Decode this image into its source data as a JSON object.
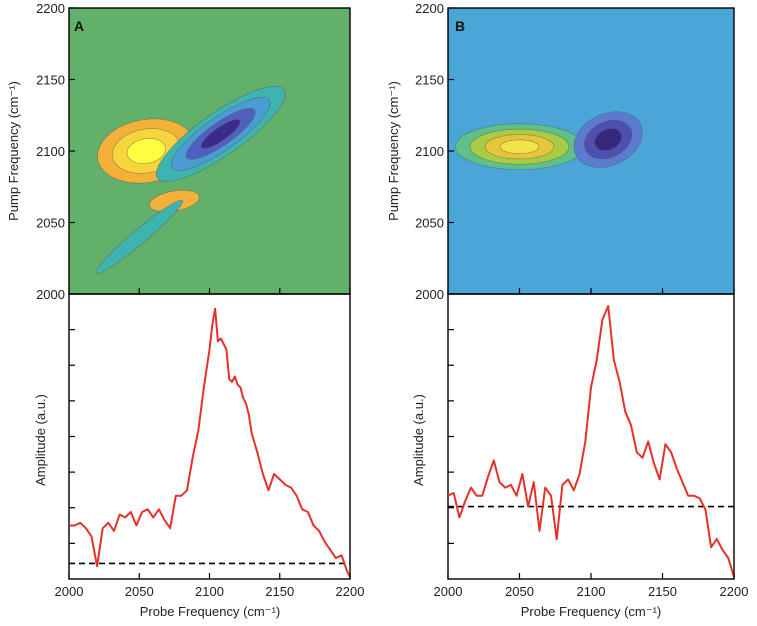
{
  "chart_data": [
    {
      "panel": "A",
      "type": "contour",
      "position": "top-left",
      "xlim": [
        2000,
        2200
      ],
      "ylim": [
        2000,
        2200
      ],
      "xticks": [
        2000,
        2050,
        2100,
        2150,
        2200
      ],
      "yticks": [
        2000,
        2050,
        2100,
        2150,
        2200
      ],
      "xlabel": "",
      "ylabel": "Pump Frequency (cm⁻¹)",
      "background_color": "#63b06a",
      "features": [
        {
          "kind": "positive-peak",
          "x": 2055,
          "y": 2100,
          "rx": 35,
          "ry": 22,
          "rot": -10,
          "colors": [
            "#f2b23a",
            "#f8d43e",
            "#ffff40"
          ]
        },
        {
          "kind": "negative-peak",
          "x": 2108,
          "y": 2112,
          "rx": 55,
          "ry": 15,
          "rot": -35,
          "colors": [
            "#3fb3b0",
            "#4b9bd4",
            "#5260bd",
            "#3b2a8a"
          ]
        },
        {
          "kind": "positive-lobe",
          "x": 2075,
          "y": 2065,
          "rx": 18,
          "ry": 7,
          "rot": -10,
          "colors": [
            "#f2b23a"
          ]
        },
        {
          "kind": "negative-ridge",
          "x": 2050,
          "y": 2040,
          "rx": 40,
          "ry": 5,
          "rot": -40,
          "colors": [
            "#3fb3b0"
          ]
        }
      ]
    },
    {
      "panel": "B",
      "type": "contour",
      "position": "top-right",
      "xlim": [
        2000,
        2200
      ],
      "ylim": [
        2000,
        2200
      ],
      "xticks": [
        2000,
        2050,
        2100,
        2150,
        2200
      ],
      "yticks": [
        2000,
        2050,
        2100,
        2150,
        2200
      ],
      "xlabel": "",
      "ylabel": "Pump Frequency (cm⁻¹)",
      "background_color": "#4aa6d6",
      "features": [
        {
          "kind": "positive-peak",
          "x": 2050,
          "y": 2103,
          "rx": 45,
          "ry": 16,
          "rot": 0,
          "colors": [
            "#5fc08a",
            "#a9cc45",
            "#e6c53a",
            "#f3e24a"
          ]
        },
        {
          "kind": "negative-peak",
          "x": 2112,
          "y": 2108,
          "rx": 25,
          "ry": 18,
          "rot": -25,
          "colors": [
            "#5a7bd0",
            "#4e4fb0",
            "#36297d"
          ]
        }
      ]
    },
    {
      "panel": "A",
      "type": "line",
      "position": "bottom-left",
      "xlim": [
        2000,
        2200
      ],
      "xticks": [
        2000,
        2050,
        2100,
        2150,
        2200
      ],
      "xlabel": "Probe Frequency (cm⁻¹)",
      "ylabel": "Amplitude (a.u.)",
      "ylim": [
        0,
        1
      ],
      "baseline": 0.05,
      "series": [
        {
          "color": "#e8302a",
          "x": [
            2000,
            2004,
            2008,
            2012,
            2016,
            2020,
            2024,
            2028,
            2032,
            2036,
            2040,
            2044,
            2048,
            2052,
            2056,
            2060,
            2064,
            2068,
            2072,
            2076,
            2080,
            2084,
            2088,
            2092,
            2096,
            2100,
            2102,
            2104,
            2106,
            2108,
            2110,
            2112,
            2114,
            2116,
            2118,
            2120,
            2122,
            2124,
            2126,
            2128,
            2130,
            2134,
            2138,
            2142,
            2146,
            2150,
            2154,
            2158,
            2162,
            2166,
            2170,
            2174,
            2178,
            2182,
            2186,
            2190,
            2194,
            2198,
            2200
          ],
          "y": [
            0.19,
            0.19,
            0.2,
            0.18,
            0.15,
            0.04,
            0.18,
            0.2,
            0.17,
            0.23,
            0.22,
            0.24,
            0.19,
            0.24,
            0.25,
            0.22,
            0.25,
            0.21,
            0.18,
            0.3,
            0.3,
            0.32,
            0.44,
            0.54,
            0.7,
            0.84,
            0.93,
            0.99,
            0.87,
            0.88,
            0.86,
            0.84,
            0.73,
            0.72,
            0.74,
            0.71,
            0.7,
            0.66,
            0.64,
            0.6,
            0.53,
            0.46,
            0.38,
            0.32,
            0.38,
            0.36,
            0.34,
            0.33,
            0.3,
            0.25,
            0.24,
            0.19,
            0.17,
            0.13,
            0.1,
            0.07,
            0.08,
            0.02,
            0.0
          ]
        }
      ]
    },
    {
      "panel": "B",
      "type": "line",
      "position": "bottom-right",
      "xlim": [
        2000,
        2200
      ],
      "xticks": [
        2000,
        2050,
        2100,
        2150,
        2200
      ],
      "xlabel": "Probe Frequency (cm⁻¹)",
      "ylabel": "Amplitude (a.u.)",
      "ylim": [
        0,
        1
      ],
      "baseline": 0.26,
      "series": [
        {
          "color": "#e8302a",
          "x": [
            2000,
            2004,
            2008,
            2012,
            2016,
            2020,
            2024,
            2028,
            2032,
            2036,
            2040,
            2044,
            2048,
            2052,
            2056,
            2060,
            2064,
            2068,
            2072,
            2076,
            2080,
            2084,
            2088,
            2092,
            2096,
            2100,
            2104,
            2108,
            2112,
            2116,
            2120,
            2124,
            2128,
            2132,
            2136,
            2140,
            2144,
            2148,
            2152,
            2156,
            2160,
            2164,
            2168,
            2172,
            2176,
            2180,
            2184,
            2188,
            2192,
            2196,
            2200
          ],
          "y": [
            0.3,
            0.31,
            0.22,
            0.28,
            0.33,
            0.3,
            0.3,
            0.37,
            0.43,
            0.35,
            0.33,
            0.34,
            0.3,
            0.38,
            0.26,
            0.35,
            0.17,
            0.33,
            0.3,
            0.14,
            0.34,
            0.36,
            0.32,
            0.38,
            0.5,
            0.7,
            0.8,
            0.95,
            1.0,
            0.8,
            0.72,
            0.61,
            0.56,
            0.46,
            0.44,
            0.5,
            0.42,
            0.36,
            0.49,
            0.46,
            0.4,
            0.35,
            0.3,
            0.3,
            0.29,
            0.25,
            0.11,
            0.14,
            0.1,
            0.07,
            0.0
          ]
        }
      ]
    }
  ]
}
